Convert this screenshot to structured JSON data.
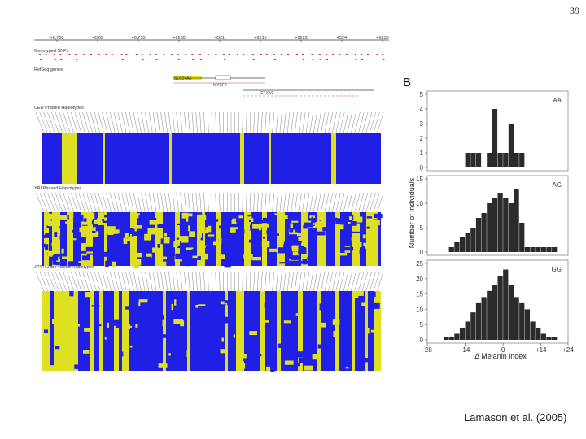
{
  "page_number": "39",
  "citation": "Lamason et al. (2005)",
  "panel_b": {
    "label": "B"
  },
  "panel_a": {
    "ruler_ticks": [
      "+6,700",
      "4526",
      "+6,710",
      "+6200",
      "4521",
      "+6210",
      "+6220",
      "4524",
      "+6230"
    ],
    "track_labels": {
      "genotyped": "Genotyped SNPs",
      "refseq": "RefSeq genes",
      "ceu": "CEU Phased Haplotypes",
      "yri": "YRI Phased Haplotypes",
      "jpt_chb": "JPT+CHB Phased Haplotypes"
    },
    "genes": [
      "SLC24A5",
      "MYEF2",
      "CTXN2"
    ],
    "colors": {
      "allele_major": "#1f1fe6",
      "allele_minor": "#e0e022",
      "gene_highlight": "#f2e600"
    }
  },
  "chart_data": {
    "type": "bar",
    "title": "",
    "xlabel": "Δ Melanin index",
    "ylabel": "Number of individuals",
    "x_ticks": [
      "-28",
      "-14",
      "0",
      "+14",
      "+24"
    ],
    "xlim": [
      -28,
      24
    ],
    "bin_width": 2,
    "panels": [
      {
        "name": "AA",
        "ylim": [
          0,
          5
        ],
        "y_ticks": [
          "0",
          "1",
          "2",
          "3",
          "4",
          "5"
        ],
        "bins": [
          -14,
          -12,
          -10,
          -8,
          -6,
          -4,
          -2,
          0,
          2,
          4,
          6,
          8
        ],
        "values": [
          1,
          1,
          1,
          0,
          1,
          4,
          1,
          1,
          3,
          1,
          1,
          0
        ]
      },
      {
        "name": "AG",
        "ylim": [
          0,
          15
        ],
        "y_ticks": [
          "0",
          "5",
          "10",
          "15"
        ],
        "bins": [
          -20,
          -18,
          -16,
          -14,
          -12,
          -10,
          -8,
          -6,
          -4,
          -2,
          0,
          2,
          4,
          6,
          8,
          10,
          12,
          14,
          16,
          18
        ],
        "values": [
          1,
          2,
          3,
          4,
          5,
          7,
          8,
          10,
          11,
          12,
          11,
          10,
          13,
          6,
          1,
          1,
          1,
          1,
          1,
          1
        ]
      },
      {
        "name": "GG",
        "ylim": [
          0,
          25
        ],
        "y_ticks": [
          "0",
          "5",
          "10",
          "15",
          "20",
          "25"
        ],
        "bins": [
          -22,
          -20,
          -18,
          -16,
          -14,
          -12,
          -10,
          -8,
          -6,
          -4,
          -2,
          0,
          2,
          4,
          6,
          8,
          10,
          12,
          14,
          16,
          18
        ],
        "values": [
          1,
          1,
          2,
          4,
          6,
          9,
          12,
          14,
          16,
          18,
          21,
          23,
          18,
          14,
          12,
          10,
          6,
          4,
          2,
          1,
          1
        ]
      }
    ]
  }
}
